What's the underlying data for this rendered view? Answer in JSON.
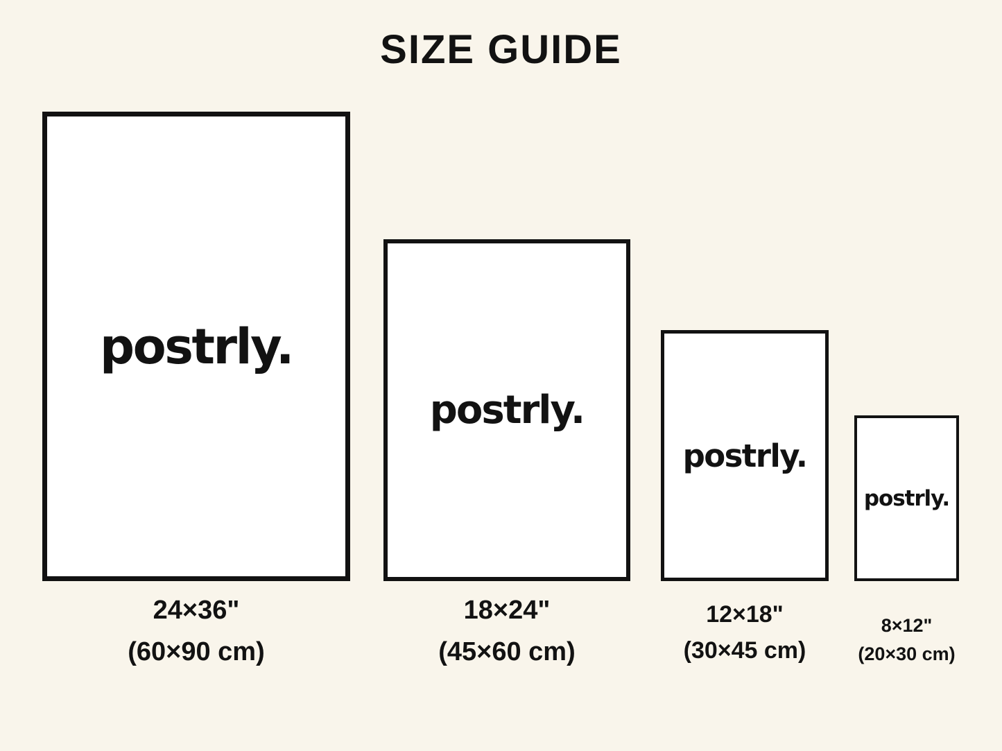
{
  "colors": {
    "background": "#F9F5EB",
    "ink": "#121212",
    "poster_fill": "#FFFFFF"
  },
  "title": "SIZE GUIDE",
  "brand_logo": "postrly.",
  "sizes": [
    {
      "inches": "24×36\"",
      "cm": "(60×90 cm)"
    },
    {
      "inches": "18×24\"",
      "cm": "(45×60 cm)"
    },
    {
      "inches": "12×18\"",
      "cm": "(30×45 cm)"
    },
    {
      "inches": "8×12\"",
      "cm": "(20×30 cm)"
    }
  ]
}
